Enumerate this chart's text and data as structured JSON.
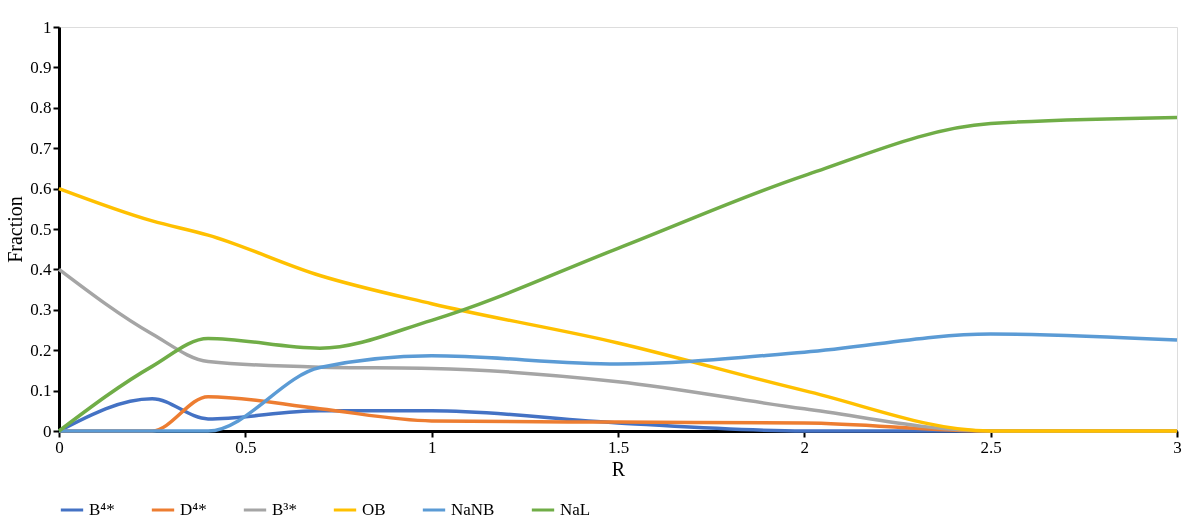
{
  "chart_data": {
    "type": "line",
    "xlabel": "R",
    "ylabel": "Fraction",
    "x": [
      0,
      0.25,
      0.4,
      0.7,
      1,
      1.5,
      2,
      2.5,
      3
    ],
    "xlim": [
      0,
      3
    ],
    "xticks": [
      0,
      0.5,
      1,
      1.5,
      2,
      2.5,
      3
    ],
    "ylim": [
      0,
      1
    ],
    "yticks": [
      0,
      0.1,
      0.2,
      0.3,
      0.4,
      0.5,
      0.6,
      0.7,
      0.8,
      0.9,
      1
    ],
    "grid": false,
    "legend": "bottom",
    "marker": "none",
    "line_style": "solid",
    "series": [
      {
        "name": "B⁴*",
        "color": "#4472c4",
        "values": [
          0,
          0.08,
          0.03,
          0.05,
          0.05,
          0.02,
          0,
          0,
          0
        ]
      },
      {
        "name": "D⁴*",
        "color": "#ed7d31",
        "values": [
          0,
          0,
          0.085,
          0.055,
          0.025,
          0.022,
          0.02,
          0,
          0
        ]
      },
      {
        "name": "B³*",
        "color": "#a5a5a5",
        "values": [
          0.4,
          0.24,
          0.172,
          0.158,
          0.155,
          0.122,
          0.055,
          0,
          0
        ]
      },
      {
        "name": "OB",
        "color": "#ffc000",
        "values": [
          0.6,
          0.52,
          0.485,
          0.385,
          0.315,
          0.218,
          0.1,
          0,
          0
        ]
      },
      {
        "name": "NaNB",
        "color": "#5b9bd5",
        "values": [
          0,
          0,
          0,
          0.157,
          0.186,
          0.166,
          0.195,
          0.24,
          0.225
        ]
      },
      {
        "name": "NaL",
        "color": "#70ad47",
        "values": [
          0,
          0.16,
          0.229,
          0.205,
          0.274,
          0.452,
          0.632,
          0.761,
          0.776
        ]
      }
    ]
  }
}
